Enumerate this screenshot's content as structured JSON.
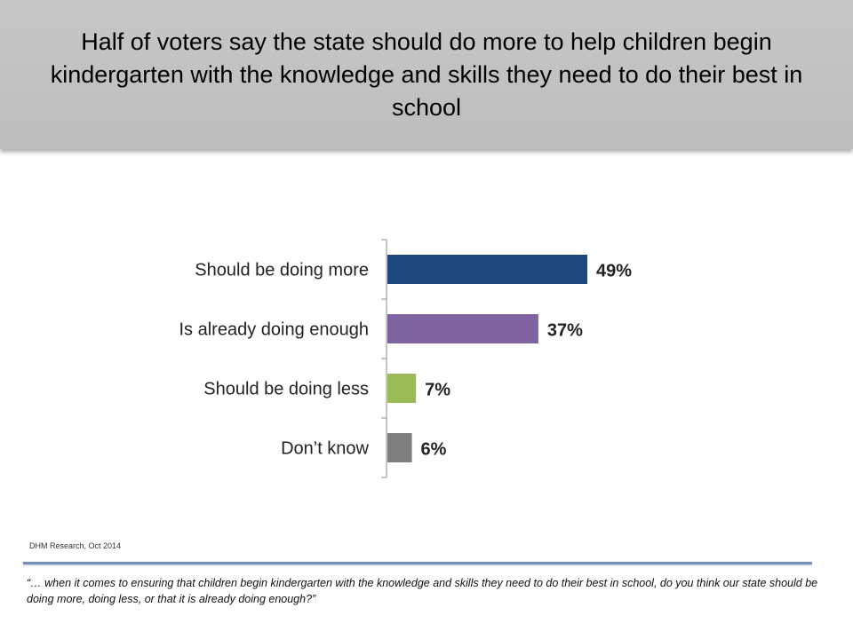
{
  "header": {
    "title": "Half of voters say the state should do more to help children begin kindergarten with the knowledge and skills they need to do their best in school"
  },
  "chart_data": {
    "type": "bar",
    "orientation": "horizontal",
    "categories": [
      "Should be doing more",
      "Is already doing enough",
      "Should be doing less",
      "Don’t know"
    ],
    "values": [
      49,
      37,
      7,
      6
    ],
    "value_labels": [
      "49%",
      "37%",
      "7%",
      "6%"
    ],
    "colors": [
      "#1f497d",
      "#8064a2",
      "#9bbb59",
      "#7f7f7f"
    ],
    "unit": "%",
    "xlim": [
      0,
      60
    ],
    "grid": false,
    "legend": "none"
  },
  "footer": {
    "source": "DHM Research, Oct 2014",
    "question": "“… when it comes to ensuring that children begin kindergarten with the knowledge and skills they need to do their best in school, do you think our state should be doing more, doing less, or that it is already doing enough?”"
  }
}
